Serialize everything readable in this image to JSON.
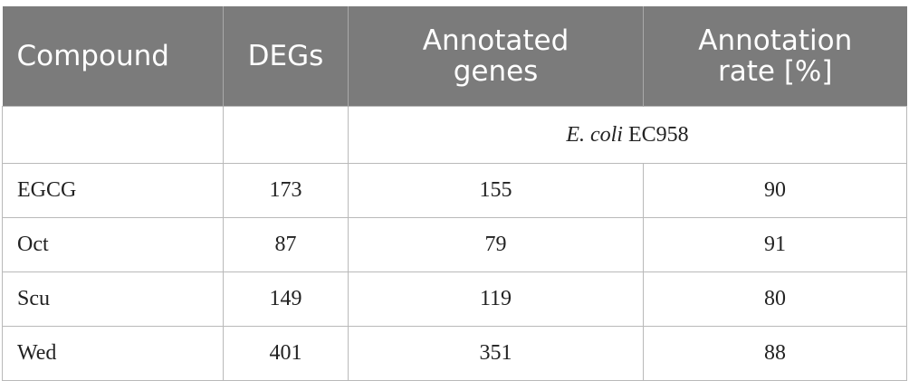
{
  "table": {
    "headers": [
      "Compound",
      "DEGs",
      "Annotated genes",
      "Annotation rate [%]"
    ],
    "header_lines": [
      [
        "Compound"
      ],
      [
        "DEGs"
      ],
      [
        "Annotated",
        "genes"
      ],
      [
        "Annotation",
        "rate [%]"
      ]
    ],
    "group_label": {
      "italic": "E. coli",
      "rest": "EC958"
    },
    "rows": [
      [
        "EGCG",
        "173",
        "155",
        "90"
      ],
      [
        "Oct",
        "87",
        "79",
        "91"
      ],
      [
        "Scu",
        "149",
        "119",
        "80"
      ],
      [
        "Wed",
        "401",
        "351",
        "88"
      ]
    ]
  },
  "colors": {
    "header_bg": "#7b7b7b",
    "header_text": "#ffffff",
    "border": "#b9b9b9"
  }
}
